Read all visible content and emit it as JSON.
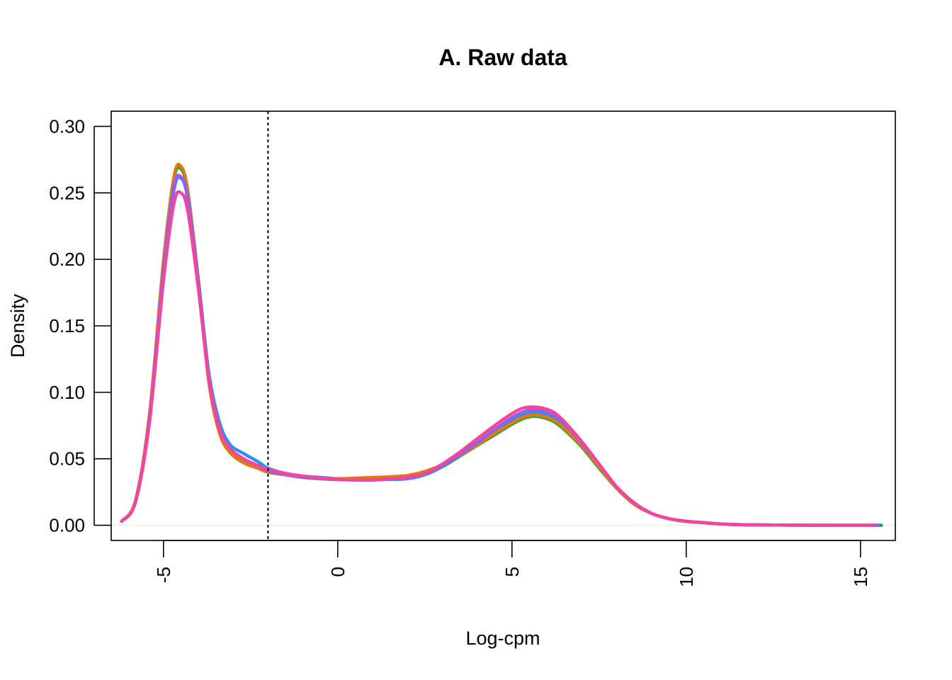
{
  "chart_data": {
    "type": "line",
    "title": "A. Raw data",
    "xlabel": "Log-cpm",
    "ylabel": "Density",
    "xlim": [
      -6.5,
      16.0
    ],
    "ylim": [
      -0.0114,
      0.3114
    ],
    "x_ticks": [
      -5,
      0,
      5,
      10,
      15
    ],
    "x_tick_labels": [
      "-5",
      "0",
      "5",
      "10",
      "15"
    ],
    "y_ticks": [
      0.0,
      0.05,
      0.1,
      0.15,
      0.2,
      0.25,
      0.3
    ],
    "y_tick_labels": [
      "0.00",
      "0.05",
      "0.10",
      "0.15",
      "0.20",
      "0.25",
      "0.30"
    ],
    "reference_line": {
      "x": -2,
      "style": "dotted",
      "color": "#000000"
    },
    "baseline": {
      "y": 0,
      "color": "#e6e6e6"
    },
    "grid": false,
    "legend": "none",
    "series": [
      {
        "color": "#2e8ff5",
        "x": [
          -6.2,
          -5.8,
          -5.4,
          -5.0,
          -4.7,
          -4.5,
          -4.3,
          -4.0,
          -3.7,
          -3.4,
          -3.1,
          -2.7,
          -2.3,
          -2.0,
          -1.5,
          -1.0,
          -0.5,
          0.0,
          0.5,
          1.0,
          1.5,
          2.0,
          2.5,
          3.0,
          3.5,
          4.0,
          4.5,
          5.0,
          5.3,
          5.6,
          5.9,
          6.2,
          6.5,
          7.0,
          7.5,
          8.0,
          8.5,
          9.0,
          9.5,
          10.0,
          10.5,
          11.0,
          11.5,
          12.0,
          12.5,
          13.0,
          14.0,
          15.0,
          15.5
        ],
        "y": [
          0.003,
          0.018,
          0.08,
          0.19,
          0.252,
          0.261,
          0.245,
          0.185,
          0.115,
          0.078,
          0.061,
          0.054,
          0.048,
          0.043,
          0.039,
          0.037,
          0.036,
          0.035,
          0.0345,
          0.0345,
          0.0345,
          0.035,
          0.038,
          0.044,
          0.052,
          0.061,
          0.071,
          0.079,
          0.083,
          0.085,
          0.084,
          0.081,
          0.075,
          0.061,
          0.045,
          0.029,
          0.017,
          0.009,
          0.005,
          0.003,
          0.002,
          0.001,
          0.0005,
          0.0003,
          0.0002,
          0.0001,
          0.0,
          0.0,
          0.0
        ]
      },
      {
        "color": "#1aa641",
        "x": [
          -6.2,
          -5.8,
          -5.4,
          -5.0,
          -4.7,
          -4.5,
          -4.3,
          -4.0,
          -3.7,
          -3.4,
          -3.1,
          -2.7,
          -2.3,
          -2.0,
          -1.5,
          -1.0,
          -0.5,
          0.0,
          0.5,
          1.0,
          1.5,
          2.0,
          2.5,
          3.0,
          3.5,
          4.0,
          4.5,
          5.0,
          5.3,
          5.6,
          5.9,
          6.2,
          6.5,
          7.0,
          7.5,
          8.0,
          8.5,
          9.0,
          9.5,
          10.0,
          10.5,
          11.0,
          11.5,
          12.0,
          12.5,
          13.0,
          14.0,
          15.0,
          15.6
        ],
        "y": [
          0.003,
          0.018,
          0.082,
          0.196,
          0.26,
          0.268,
          0.25,
          0.185,
          0.11,
          0.072,
          0.056,
          0.048,
          0.043,
          0.04,
          0.038,
          0.036,
          0.035,
          0.0345,
          0.035,
          0.0355,
          0.036,
          0.037,
          0.04,
          0.045,
          0.052,
          0.06,
          0.068,
          0.076,
          0.08,
          0.082,
          0.081,
          0.078,
          0.072,
          0.059,
          0.043,
          0.028,
          0.016,
          0.009,
          0.005,
          0.003,
          0.002,
          0.001,
          0.0005,
          0.0003,
          0.0002,
          0.0001,
          0.0,
          0.0,
          0.0
        ]
      },
      {
        "color": "#e07a10",
        "x": [
          -6.2,
          -5.8,
          -5.4,
          -5.0,
          -4.7,
          -4.5,
          -4.3,
          -4.0,
          -3.7,
          -3.4,
          -3.1,
          -2.7,
          -2.3,
          -2.0,
          -1.5,
          -1.0,
          -0.5,
          0.0,
          0.5,
          1.0,
          1.5,
          2.0,
          2.5,
          3.0,
          3.5,
          4.0,
          4.5,
          5.0,
          5.3,
          5.6,
          5.9,
          6.2,
          6.5,
          7.0,
          7.5,
          8.0,
          8.5,
          9.0,
          9.5,
          10.0,
          10.5,
          11.0,
          11.5,
          12.0,
          12.5,
          13.0,
          14.0,
          15.0,
          15.5
        ],
        "y": [
          0.003,
          0.019,
          0.084,
          0.199,
          0.262,
          0.27,
          0.251,
          0.184,
          0.108,
          0.07,
          0.055,
          0.047,
          0.043,
          0.04,
          0.038,
          0.0365,
          0.0355,
          0.035,
          0.0355,
          0.036,
          0.0365,
          0.0375,
          0.0405,
          0.0455,
          0.0525,
          0.0605,
          0.069,
          0.077,
          0.081,
          0.083,
          0.082,
          0.079,
          0.073,
          0.06,
          0.044,
          0.028,
          0.016,
          0.009,
          0.005,
          0.003,
          0.002,
          0.001,
          0.0005,
          0.0003,
          0.0002,
          0.0001,
          0.0,
          0.0,
          0.0
        ]
      },
      {
        "color": "#8f62e8",
        "x": [
          -6.2,
          -5.8,
          -5.4,
          -5.0,
          -4.7,
          -4.5,
          -4.3,
          -4.0,
          -3.7,
          -3.4,
          -3.1,
          -2.7,
          -2.3,
          -2.0,
          -1.5,
          -1.0,
          -0.5,
          0.0,
          0.5,
          1.0,
          1.5,
          2.0,
          2.5,
          3.0,
          3.5,
          4.0,
          4.5,
          5.0,
          5.3,
          5.6,
          5.9,
          6.2,
          6.5,
          7.0,
          7.5,
          8.0,
          8.5,
          9.0,
          9.5,
          10.0,
          10.5,
          11.0,
          11.5,
          12.0,
          12.5,
          13.0,
          14.0,
          15.0,
          15.5
        ],
        "y": [
          0.003,
          0.018,
          0.081,
          0.192,
          0.254,
          0.262,
          0.246,
          0.183,
          0.111,
          0.074,
          0.058,
          0.05,
          0.045,
          0.041,
          0.038,
          0.036,
          0.035,
          0.0345,
          0.034,
          0.034,
          0.035,
          0.036,
          0.039,
          0.045,
          0.053,
          0.062,
          0.072,
          0.081,
          0.085,
          0.087,
          0.086,
          0.083,
          0.077,
          0.062,
          0.046,
          0.029,
          0.017,
          0.009,
          0.005,
          0.003,
          0.002,
          0.001,
          0.0005,
          0.0003,
          0.0002,
          0.0001,
          0.0,
          0.0,
          0.0
        ]
      },
      {
        "color": "#f5449f",
        "x": [
          -6.2,
          -5.8,
          -5.4,
          -5.0,
          -4.7,
          -4.5,
          -4.3,
          -4.0,
          -3.7,
          -3.4,
          -3.1,
          -2.7,
          -2.3,
          -2.0,
          -1.5,
          -1.0,
          -0.5,
          0.0,
          0.5,
          1.0,
          1.5,
          2.0,
          2.5,
          3.0,
          3.5,
          4.0,
          4.5,
          5.0,
          5.3,
          5.6,
          5.9,
          6.2,
          6.5,
          7.0,
          7.5,
          8.0,
          8.5,
          9.0,
          9.5,
          10.0,
          10.5,
          11.0,
          11.5,
          12.0,
          12.5,
          13.0,
          14.0,
          15.0,
          15.4
        ],
        "y": [
          0.003,
          0.018,
          0.078,
          0.184,
          0.242,
          0.25,
          0.236,
          0.178,
          0.11,
          0.073,
          0.058,
          0.05,
          0.045,
          0.042,
          0.039,
          0.037,
          0.0355,
          0.0345,
          0.034,
          0.034,
          0.035,
          0.036,
          0.039,
          0.046,
          0.055,
          0.065,
          0.075,
          0.084,
          0.088,
          0.089,
          0.088,
          0.085,
          0.078,
          0.063,
          0.046,
          0.029,
          0.017,
          0.009,
          0.005,
          0.003,
          0.002,
          0.001,
          0.0005,
          0.0003,
          0.0002,
          0.0001,
          0.0,
          0.0,
          0.0
        ]
      }
    ]
  }
}
